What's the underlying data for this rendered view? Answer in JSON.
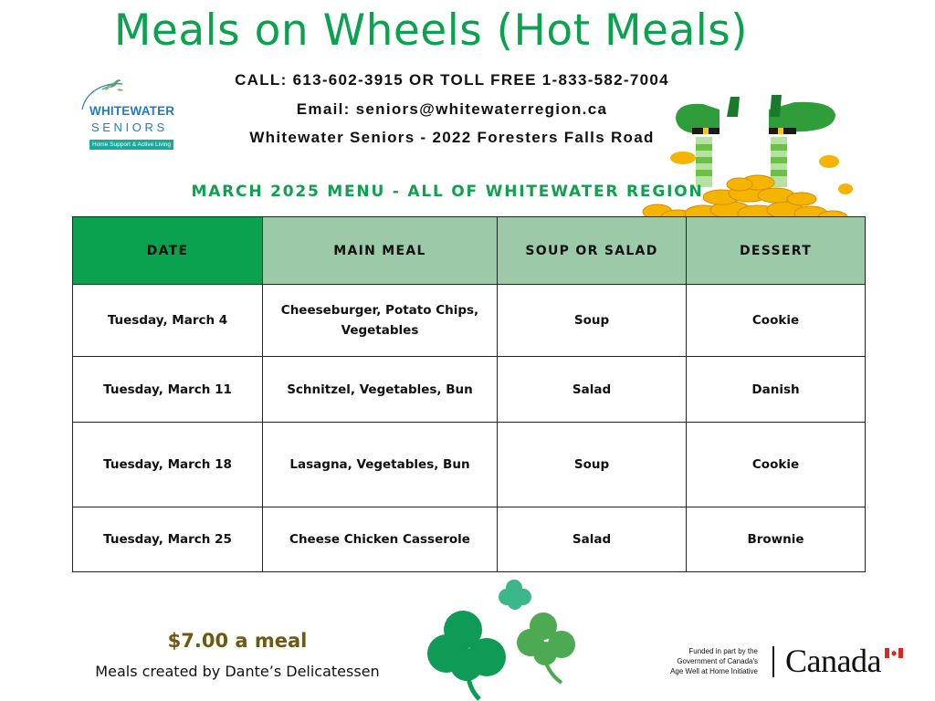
{
  "header": {
    "title": "Meals on Wheels (Hot Meals)",
    "call": "CALL:  613-602-3915 OR TOLL FREE 1-833-582-7004",
    "email": "Email: seniors@whitewaterregion.ca",
    "address": "Whitewater Seniors - 2022 Foresters Falls Road"
  },
  "logo": {
    "name_line1": "WHITEWATER",
    "name_line2": "SENIORS",
    "tagline": "Home Support & Active Living"
  },
  "menu": {
    "heading": "MARCH 2025 MENU - ALL OF WHITEWATER REGION",
    "columns": [
      "DATE",
      "MAIN MEAL",
      "SOUP OR SALAD",
      "DESSERT"
    ],
    "rows": [
      {
        "date": "Tuesday, March 4",
        "main": "Cheeseburger, Potato Chips, Vegetables",
        "side": "Soup",
        "dessert": "Cookie"
      },
      {
        "date": "Tuesday, March 11",
        "main": "Schnitzel, Vegetables, Bun",
        "side": "Salad",
        "dessert": "Danish"
      },
      {
        "date": "Tuesday, March 18",
        "main": "Lasagna, Vegetables, Bun",
        "side": "Soup",
        "dessert": "Cookie"
      },
      {
        "date": "Tuesday, March 25",
        "main": "Cheese Chicken Casserole",
        "side": "Salad",
        "dessert": "Brownie"
      }
    ]
  },
  "footer": {
    "price": "$7.00 a meal",
    "credit": "Meals created by Dante’s Delicatessen",
    "funded_line1": "Funded in part by the",
    "funded_line2": "Government of Canada's",
    "funded_line3": "Age Well at Home Initiative",
    "wordmark": "Canada"
  },
  "colors": {
    "title_green": "#0aa14f",
    "header_dark_green": "#0aa14f",
    "header_light_green": "#9ccaa8",
    "price_brown": "#6b5a12",
    "logo_blue": "#1f7fb5",
    "logo_teal": "#19a89b"
  },
  "icons": [
    "leprechaun-legs-gold-coins-illustration",
    "shamrock-icon",
    "maple-leaf-flag-icon"
  ]
}
